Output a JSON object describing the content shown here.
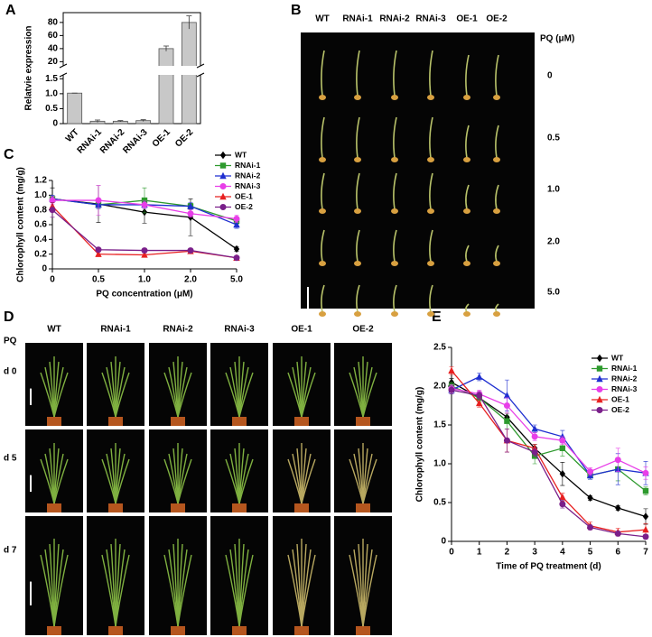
{
  "chart_data": [
    {
      "type": "bar",
      "panel": "A",
      "ylabel": "Relatvie expression",
      "categories": [
        "WT",
        "RNAi-1",
        "RNAi-2",
        "RNAi-3",
        "OE-1",
        "OE-2"
      ],
      "values": [
        1.02,
        0.08,
        0.08,
        0.1,
        40,
        80
      ],
      "errors": [
        0,
        0.04,
        0.02,
        0.03,
        4,
        10
      ],
      "color": "#c8c8c8",
      "lower_ylim": [
        0,
        1.6
      ],
      "lower_yticks": [
        0,
        0.5,
        {
          "value": 1,
          "label": "1.0"
        },
        1.5
      ],
      "upper_ylim": [
        15,
        95
      ],
      "upper_yticks": [
        20,
        40,
        60,
        80
      ]
    },
    {
      "type": "line",
      "panel": "C",
      "ylabel": "Chlorophyll content (mg/g)",
      "xlabel": "PQ concentration (μM)",
      "categories": [
        "0",
        "0.5",
        "1.0",
        "2.0",
        "5.0"
      ],
      "ylim": [
        0,
        1.2
      ],
      "yticks": [
        0,
        0.2,
        0.4,
        0.6,
        0.8,
        {
          "value": 1,
          "label": "1.0"
        },
        1.2
      ],
      "series": [
        {
          "name": "WT",
          "color": "#000000",
          "marker": "diamond",
          "values": [
            0.95,
            0.88,
            0.77,
            0.7,
            0.27
          ],
          "errors": [
            0.15,
            0.25,
            0.15,
            0.25,
            0.03
          ]
        },
        {
          "name": "RNAi-1",
          "color": "#2e9a2e",
          "marker": "square",
          "values": [
            0.95,
            0.87,
            0.93,
            0.85,
            0.65
          ],
          "errors": [
            0.05,
            0.05,
            0.17,
            0.04,
            0.04
          ]
        },
        {
          "name": "RNAi-2",
          "color": "#1f2fd0",
          "marker": "triangle",
          "values": [
            0.95,
            0.87,
            0.87,
            0.85,
            0.6
          ],
          "errors": [
            0.05,
            0.05,
            0.05,
            0.05,
            0.05
          ]
        },
        {
          "name": "RNAi-3",
          "color": "#e83ee8",
          "marker": "circle",
          "values": [
            0.93,
            0.93,
            0.87,
            0.75,
            0.68
          ],
          "errors": [
            0.05,
            0.2,
            0.05,
            0.05,
            0.05
          ]
        },
        {
          "name": "OE-1",
          "color": "#e82020",
          "marker": "triangle",
          "values": [
            0.85,
            0.2,
            0.19,
            0.24,
            0.15
          ],
          "errors": [
            0.05,
            0.03,
            0.03,
            0.03,
            0.02
          ]
        },
        {
          "name": "OE-2",
          "color": "#7a1f8a",
          "marker": "circle",
          "values": [
            0.8,
            0.26,
            0.25,
            0.25,
            0.15
          ],
          "errors": [
            0.1,
            0.02,
            0.03,
            0.03,
            0.02
          ]
        }
      ]
    },
    {
      "type": "line",
      "panel": "E",
      "ylabel": "Chlorophyll content (mg/g)",
      "xlabel": "Time of PQ treatment (d)",
      "x": [
        0,
        1,
        2,
        3,
        4,
        5,
        6,
        7
      ],
      "xlim": [
        0,
        7
      ],
      "xticks": [
        0,
        1,
        2,
        3,
        4,
        5,
        6,
        7
      ],
      "ylim": [
        0,
        2.5
      ],
      "yticks": [
        0,
        0.5,
        {
          "value": 1,
          "label": "1.0"
        },
        1.5,
        {
          "value": 2,
          "label": "2.0"
        },
        2.5
      ],
      "series": [
        {
          "name": "WT",
          "color": "#000000",
          "marker": "diamond",
          "values": [
            2.05,
            1.85,
            1.6,
            1.2,
            0.87,
            0.56,
            0.43,
            0.32
          ],
          "errors": [
            0.05,
            0.05,
            0.05,
            0.05,
            0.15,
            0.03,
            0.03,
            0.1
          ]
        },
        {
          "name": "RNAi-1",
          "color": "#2e9a2e",
          "marker": "square",
          "values": [
            2.0,
            1.85,
            1.55,
            1.1,
            1.2,
            0.85,
            0.93,
            0.65
          ],
          "errors": [
            0.05,
            0.05,
            0.1,
            0.1,
            0.1,
            0.05,
            0.15,
            0.05
          ]
        },
        {
          "name": "RNAi-2",
          "color": "#1f2fd0",
          "marker": "triangle",
          "values": [
            1.95,
            2.12,
            1.88,
            1.45,
            1.35,
            0.85,
            0.93,
            0.88
          ],
          "errors": [
            0.05,
            0.05,
            0.2,
            0.05,
            0.08,
            0.05,
            0.2,
            0.15
          ]
        },
        {
          "name": "RNAi-3",
          "color": "#e83ee8",
          "marker": "circle",
          "values": [
            1.97,
            1.9,
            1.75,
            1.35,
            1.3,
            0.9,
            1.05,
            0.88
          ],
          "errors": [
            0.05,
            0.05,
            0.1,
            0.05,
            0.05,
            0.05,
            0.15,
            0.08
          ]
        },
        {
          "name": "OE-1",
          "color": "#e82020",
          "marker": "triangle",
          "values": [
            2.2,
            1.78,
            1.3,
            1.2,
            0.57,
            0.2,
            0.12,
            0.15
          ],
          "errors": [
            0.05,
            0.05,
            0.15,
            0.05,
            0.05,
            0.05,
            0.05,
            0.08
          ]
        },
        {
          "name": "OE-2",
          "color": "#7a1f8a",
          "marker": "circle",
          "values": [
            1.95,
            1.88,
            1.3,
            1.15,
            0.48,
            0.18,
            0.1,
            0.06
          ],
          "errors": [
            0.05,
            0.05,
            0.15,
            0.05,
            0.05,
            0.03,
            0.03,
            0.03
          ]
        }
      ]
    }
  ],
  "panel_b": {
    "letter": "B",
    "columns": [
      "WT",
      "RNAi-1",
      "RNAi-2",
      "RNAi-3",
      "OE-1",
      "OE-2"
    ],
    "row_title": "PQ (μM)",
    "rows": [
      "0",
      "0.5",
      "1.0",
      "2.0",
      "5.0"
    ]
  },
  "panel_d": {
    "letter": "D",
    "columns": [
      "WT",
      "RNAi-1",
      "RNAi-2",
      "RNAi-3",
      "OE-1",
      "OE-2"
    ],
    "row_title": "PQ",
    "rows": [
      "d 0",
      "d 5",
      "d 7"
    ]
  }
}
